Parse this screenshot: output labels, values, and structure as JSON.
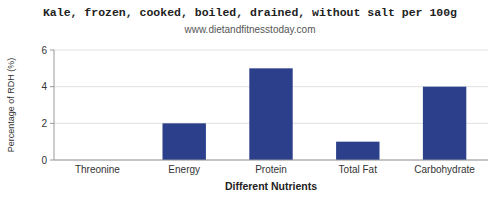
{
  "chart_data": {
    "type": "bar",
    "title": "Kale, frozen, cooked, boiled, drained, without salt per 100g",
    "subtitle": "www.dietandfitnesstoday.com",
    "xlabel": "Different Nutrients",
    "ylabel": "Percentage of RDH (%)",
    "categories": [
      "Threonine",
      "Energy",
      "Protein",
      "Total Fat",
      "Carbohydrate"
    ],
    "values": [
      0,
      2,
      5,
      1,
      4
    ],
    "color": "#2b3f8b",
    "ylim": [
      0,
      6
    ],
    "yticks": [
      0,
      2,
      4,
      6
    ],
    "grid": true
  }
}
